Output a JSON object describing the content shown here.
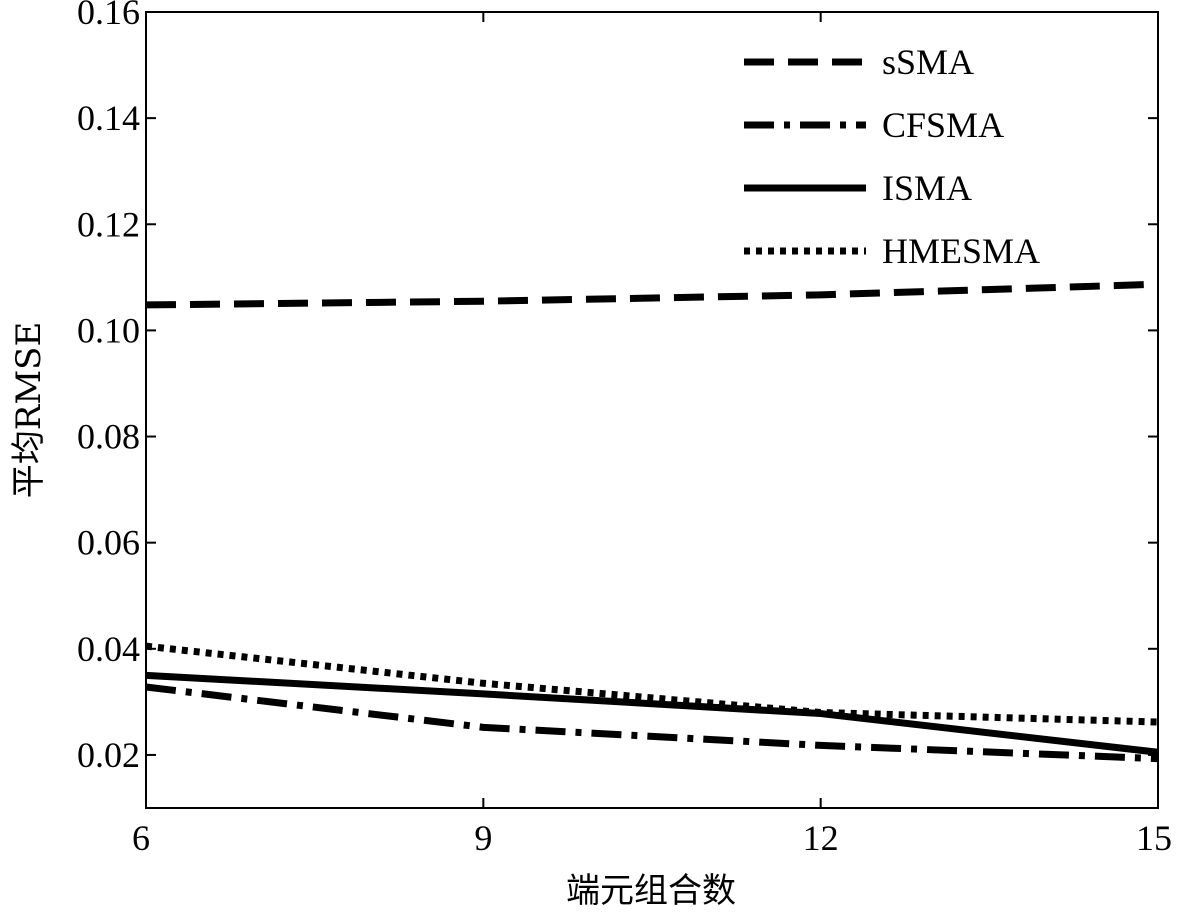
{
  "chart_data": {
    "type": "line",
    "title": "",
    "xlabel": "端元组合数",
    "ylabel": "平均RMSE",
    "xlim": [
      6,
      15
    ],
    "ylim": [
      0.01,
      0.16
    ],
    "xticks": [
      6,
      9,
      12,
      15
    ],
    "yticks": [
      0.02,
      0.04,
      0.06,
      0.08,
      0.1,
      0.12,
      0.14,
      0.16
    ],
    "x_tick_labels": [
      "6",
      "9",
      "12",
      "15"
    ],
    "y_tick_labels": [
      "0.02",
      "0.04",
      "0.06",
      "0.08",
      "0.10",
      "0.12",
      "0.14",
      "0.16"
    ],
    "x": [
      6,
      9,
      12,
      15
    ],
    "grid": false,
    "legend_position": "top-right",
    "series": [
      {
        "name": "sSMA",
        "style": "dashed",
        "values": [
          0.1048,
          0.1055,
          0.1067,
          0.1087
        ]
      },
      {
        "name": "CFSMA",
        "style": "dashdot",
        "values": [
          0.0328,
          0.0252,
          0.0218,
          0.0193
        ]
      },
      {
        "name": "ISMA",
        "style": "solid",
        "values": [
          0.035,
          0.0315,
          0.0278,
          0.0205
        ]
      },
      {
        "name": "HMESMA",
        "style": "dotted",
        "values": [
          0.0405,
          0.0335,
          0.028,
          0.0262
        ]
      }
    ]
  }
}
